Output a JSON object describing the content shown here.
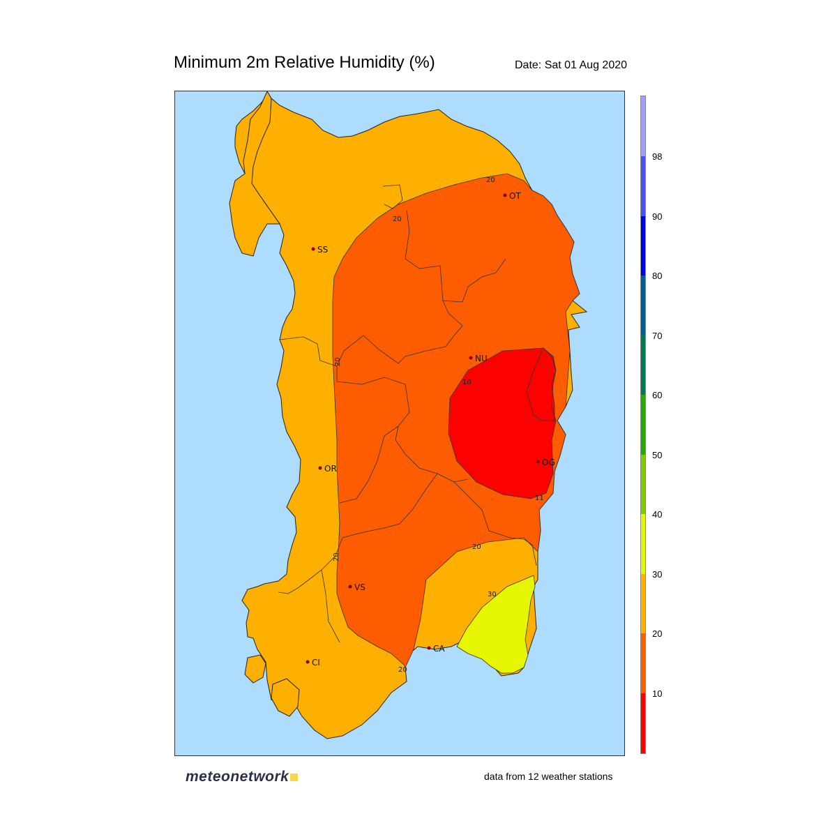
{
  "header": {
    "title": "Minimum 2m Relative Humidity (%)",
    "date": "Date: Sat 01 Aug 2020"
  },
  "map": {
    "region": "Sardinia",
    "stations": [
      {
        "code": "SS"
      },
      {
        "code": "OT"
      },
      {
        "code": "NU"
      },
      {
        "code": "OR"
      },
      {
        "code": "OG"
      },
      {
        "code": "VS"
      },
      {
        "code": "CA"
      },
      {
        "code": "CI"
      }
    ],
    "contour_labels": [
      "20",
      "20",
      "20",
      "20",
      "20",
      "20",
      "10",
      "11",
      "30"
    ],
    "zone_colors": {
      "sea": "#aedcfc",
      "20-30": "#fdb000",
      "10-20": "#fd5c00",
      "<10": "#fd0000",
      "30-40": "#e6f500"
    }
  },
  "legend": {
    "labels": [
      "98",
      "90",
      "80",
      "70",
      "60",
      "50",
      "40",
      "30",
      "20",
      "10"
    ],
    "colors": [
      "#fd0000",
      "#fd5c00",
      "#fdb000",
      "#e6f500",
      "#7fcd00",
      "#28aa00",
      "#007850",
      "#006090",
      "#0000e6",
      "#5050f0",
      "#a0a0fa"
    ]
  },
  "footer": {
    "logo": "meteonetwork",
    "note": "data from 12 weather stations"
  }
}
